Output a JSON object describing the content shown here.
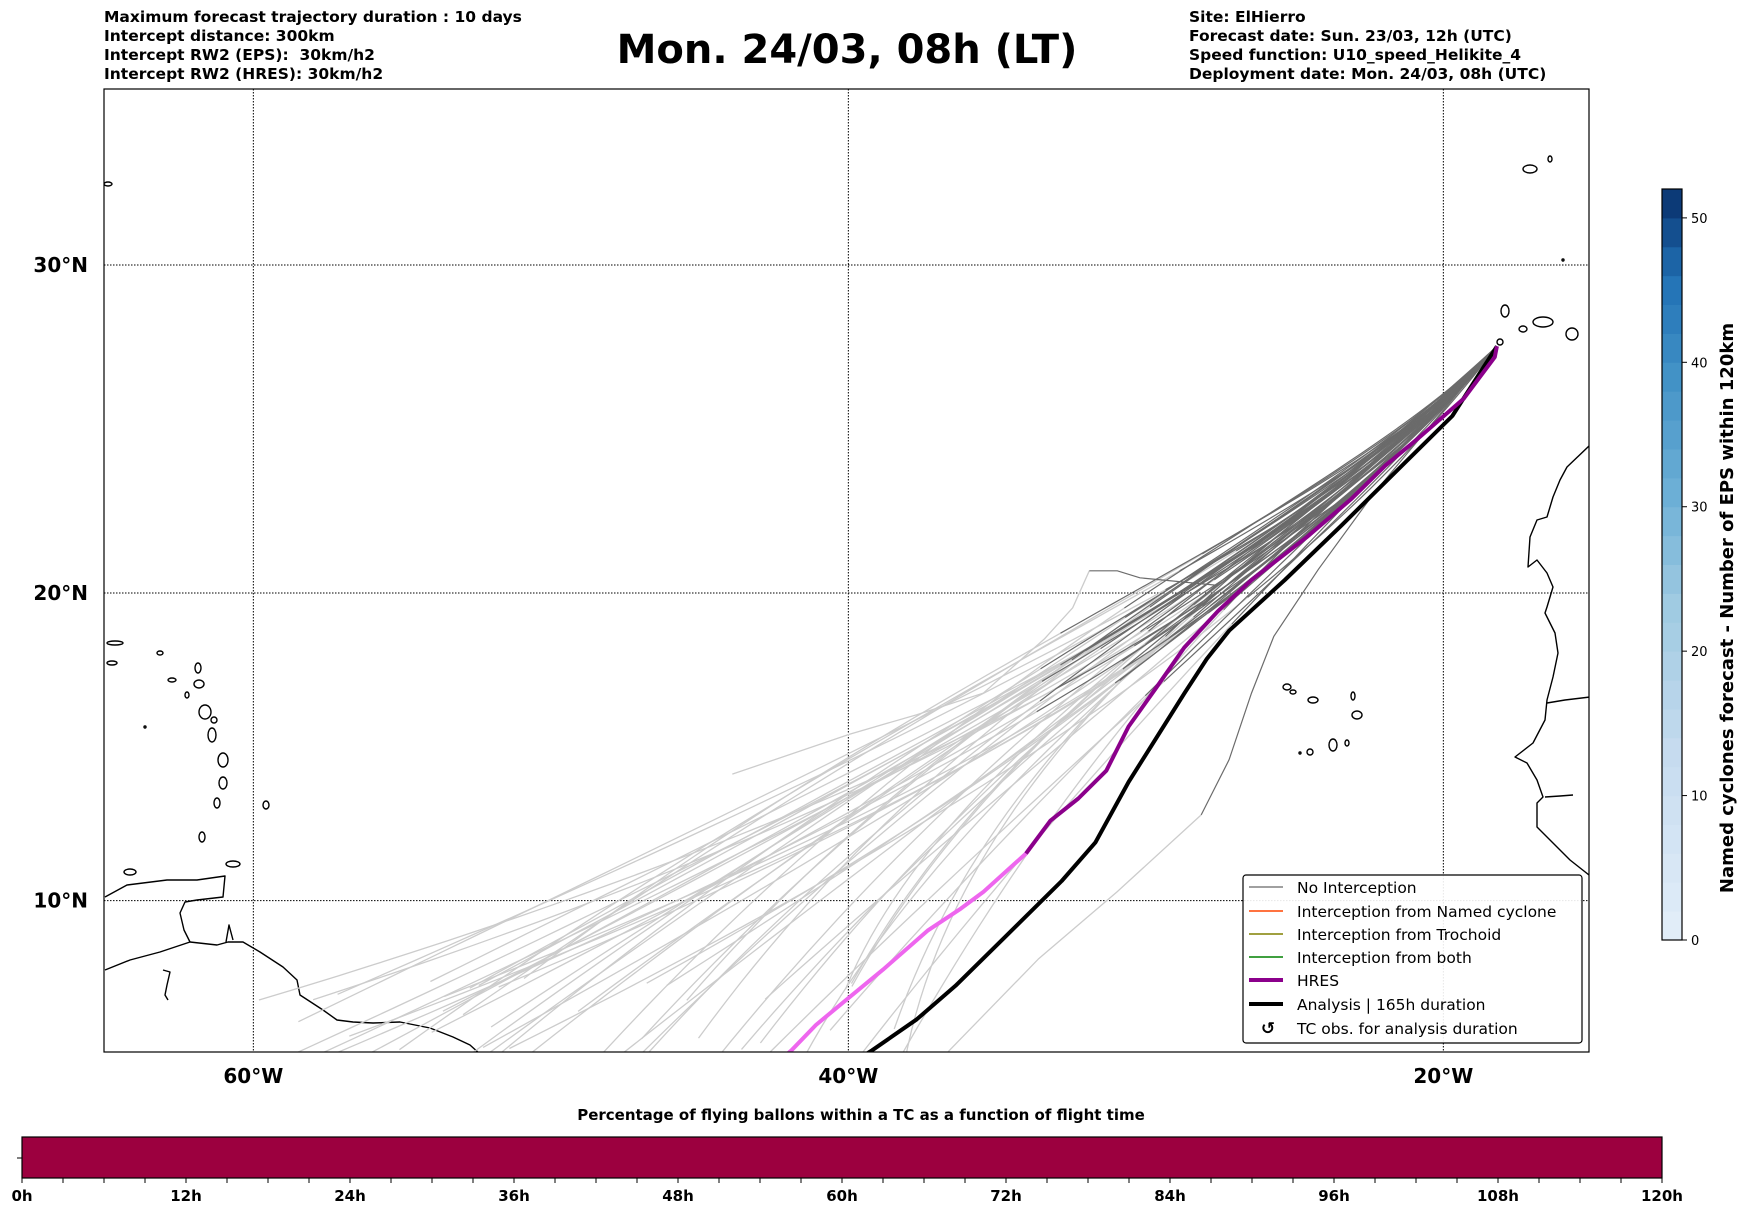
{
  "header": {
    "left": [
      "Maximum forecast trajectory duration : 10 days",
      "Intercept distance: 300km",
      "Intercept RW2 (EPS):  30km/h2",
      "Intercept RW2 (HRES): 30km/h2"
    ],
    "title": "Mon. 24/03, 08h (LT)",
    "right": [
      "Site: ElHierro",
      "Forecast date: Sun. 23/03, 12h (UTC)",
      "Speed function: U10_speed_Helikite_4",
      "Deployment date: Mon. 24/03, 08h (UTC)"
    ]
  },
  "legend": [
    {
      "label": "No Interception",
      "color": "#808080",
      "kind": "thin"
    },
    {
      "label": "Interception from Named cyclone",
      "color": "#ff4500",
      "kind": "thin"
    },
    {
      "label": "Interception from Trochoid",
      "color": "#808000",
      "kind": "thin"
    },
    {
      "label": "Interception from both",
      "color": "#008000",
      "kind": "thin"
    },
    {
      "label": "HRES",
      "color": "#8b008b",
      "kind": "thick"
    },
    {
      "label": "Analysis | 165h duration",
      "color": "#000000",
      "kind": "thick"
    },
    {
      "label": "TC obs. for analysis duration",
      "color": "#000000",
      "kind": "symbol",
      "symbol": "↺"
    }
  ],
  "colorbar": {
    "label": "Named cyclones forecast - Number of EPS within 120km",
    "ticks": [
      "0",
      "10",
      "20",
      "30",
      "40",
      "50"
    ],
    "tick_values": [
      0,
      10,
      20,
      30,
      40,
      50
    ],
    "range": [
      0,
      52
    ]
  },
  "bottom_bar": {
    "title": "Percentage of flying ballons within a TC as a function of flight time",
    "ticks": [
      "0h",
      "12h",
      "24h",
      "36h",
      "48h",
      "60h",
      "72h",
      "84h",
      "96h",
      "108h",
      "120h"
    ],
    "range_hours": [
      0,
      120
    ],
    "fill_color": "#9c003f"
  },
  "chart_data": {
    "type": "map-trajectories",
    "title": "Mon. 24/03, 08h (LT)",
    "lon_range": [
      -65,
      -15
    ],
    "lat_range": [
      5,
      35
    ],
    "x_ticks": [
      {
        "value": -60,
        "label": "60°W"
      },
      {
        "value": -40,
        "label": "40°W"
      },
      {
        "value": -20,
        "label": "20°W"
      }
    ],
    "y_ticks": [
      {
        "value": 10,
        "label": "10°N"
      },
      {
        "value": 20,
        "label": "20°N"
      },
      {
        "value": 30,
        "label": "30°N"
      }
    ],
    "grid": true,
    "legend_position": "lower-right",
    "site": {
      "name": "ElHierro",
      "lon": -18.1,
      "lat": 27.7
    },
    "hres": {
      "color_early": "#8b008b",
      "color_late": "#ee66ee",
      "points": [
        [
          -18.2,
          27.6
        ],
        [
          -18.27,
          27.28
        ],
        [
          -19.32,
          26.02
        ],
        [
          -20.83,
          24.83
        ],
        [
          -21.95,
          23.98
        ],
        [
          -23.08,
          22.96
        ],
        [
          -24.58,
          21.77
        ],
        [
          -26.45,
          20.41
        ],
        [
          -27.58,
          19.42
        ],
        [
          -28.71,
          18.26
        ],
        [
          -29.64,
          16.99
        ],
        [
          -30.58,
          15.72
        ],
        [
          -31.33,
          14.28
        ],
        [
          -32.27,
          13.37
        ],
        [
          -33.21,
          12.64
        ],
        [
          -34.03,
          11.56
        ],
        [
          -35.46,
          10.29
        ],
        [
          -36.21,
          9.74
        ],
        [
          -37.34,
          9.0
        ],
        [
          -38.84,
          7.7
        ],
        [
          -39.96,
          6.78
        ],
        [
          -41.09,
          5.85
        ],
        [
          -41.91,
          5.0
        ],
        [
          -42.5,
          4.5
        ]
      ],
      "late_from_index": 15
    },
    "analysis": {
      "color": "#000000",
      "duration": "165h",
      "points": [
        [
          -18.2,
          27.6
        ],
        [
          -19.7,
          25.5
        ],
        [
          -21.2,
          24.15
        ],
        [
          -23.45,
          22.1
        ],
        [
          -25.33,
          20.41
        ],
        [
          -27.2,
          18.8
        ],
        [
          -27.95,
          17.9
        ],
        [
          -28.7,
          16.8
        ],
        [
          -29.64,
          15.36
        ],
        [
          -30.58,
          13.91
        ],
        [
          -31.7,
          11.92
        ],
        [
          -32.83,
          10.65
        ],
        [
          -34.7,
          8.82
        ],
        [
          -36.4,
          7.16
        ],
        [
          -37.7,
          6.04
        ],
        [
          -39.2,
          5.0
        ],
        [
          -40,
          4.5
        ]
      ]
    },
    "ensemble_outliers": [
      {
        "dark": [
          [
            -18.2,
            27.6
          ],
          [
            -22.5,
            23.5
          ],
          [
            -27.58,
            20.24
          ],
          [
            -30.2,
            20.48
          ],
          [
            -30.96,
            20.7
          ],
          [
            -31.9,
            20.7
          ]
        ],
        "light": [
          [
            -31.9,
            20.7
          ],
          [
            -32.46,
            19.53
          ],
          [
            -33.4,
            18.55
          ],
          [
            -35.46,
            16.8
          ],
          [
            -37.7,
            16.1
          ],
          [
            -39.96,
            15.47
          ],
          [
            -43.9,
            14.17
          ]
        ]
      },
      {
        "dark": [
          [
            -18.2,
            27.6
          ],
          [
            -22.33,
            23.13
          ],
          [
            -24.2,
            20.75
          ],
          [
            -25.7,
            18.62
          ],
          [
            -26.45,
            16.8
          ],
          [
            -27.2,
            14.64
          ],
          [
            -28.14,
            12.83
          ]
        ],
        "light": [
          [
            -28.14,
            12.83
          ],
          [
            -30.96,
            10.3
          ],
          [
            -33.6,
            8.07
          ],
          [
            -36.6,
            5.0
          ],
          [
            -37.2,
            4.3
          ]
        ]
      }
    ],
    "ensemble_count": 50,
    "bottom_bar_percent": [
      0,
      0,
      0,
      0,
      0,
      0,
      0,
      0,
      0,
      0,
      0
    ]
  }
}
